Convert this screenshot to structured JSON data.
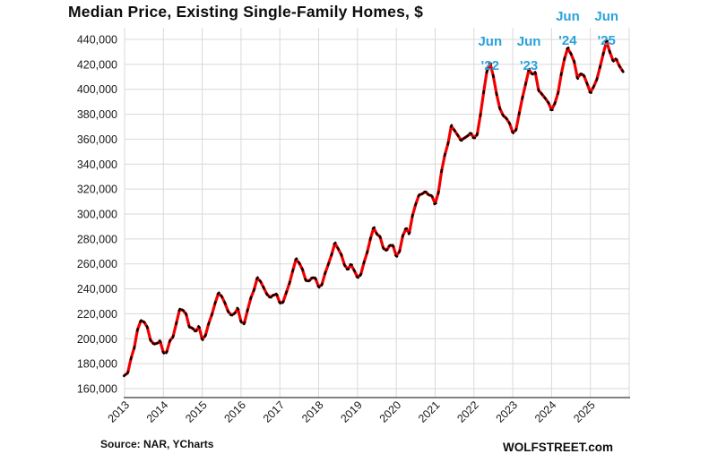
{
  "header": {
    "title": "Median Price, Existing Single-Family Homes, $"
  },
  "footer": {
    "source": "Source: NAR, YCharts",
    "branding": "WOLFSTREET.com"
  },
  "chart_data": {
    "type": "line",
    "title": "Median Price, Existing Single-Family Homes, $",
    "unit": "USD",
    "frequency": "monthly",
    "x_start": "2013-01",
    "x_end": "2025-11",
    "grid": true,
    "legend": "none",
    "x_tick_labels": [
      "2013",
      "2014",
      "2015",
      "2016",
      "2017",
      "2018",
      "2019",
      "2020",
      "2021",
      "2022",
      "2023",
      "2024",
      "2025"
    ],
    "y_tick_labels": [
      "160,000",
      "180,000",
      "200,000",
      "220,000",
      "240,000",
      "260,000",
      "280,000",
      "300,000",
      "320,000",
      "340,000",
      "360,000",
      "380,000",
      "400,000",
      "420,000",
      "440,000"
    ],
    "y_axis": {
      "min": 160000,
      "max": 440000,
      "step": 20000
    },
    "colors": {
      "line": "#f00000",
      "marker": "#000000",
      "annotation": "#29a2db",
      "gridline": "#d9d9d9",
      "axis_line": "#595959",
      "tick_text": "#1a1a1a"
    },
    "series": [
      {
        "name": "Median price, existing single-family homes",
        "color": "#f00000",
        "marker": "black-dash",
        "values": [
          170600,
          172800,
          184300,
          192800,
          207100,
          214200,
          213400,
          209300,
          198900,
          196000,
          196300,
          197900,
          188900,
          189200,
          198200,
          201700,
          212400,
          223300,
          222900,
          219800,
          209700,
          208300,
          206200,
          209500,
          199600,
          202600,
          212100,
          219400,
          228700,
          236400,
          234000,
          228700,
          221900,
          219000,
          220300,
          224100,
          213800,
          212300,
          222700,
          232500,
          239100,
          248600,
          246000,
          240900,
          235700,
          233300,
          234900,
          235500,
          228900,
          229400,
          237000,
          244800,
          254600,
          263800,
          260600,
          255500,
          247000,
          246400,
          248800,
          248400,
          241700,
          243400,
          252700,
          259900,
          267500,
          276500,
          272300,
          267300,
          259100,
          255800,
          259400,
          254700,
          249400,
          251400,
          261100,
          269300,
          280200,
          288800,
          284000,
          281600,
          272600,
          271100,
          274700,
          274500,
          266300,
          270100,
          282500,
          288200,
          284600,
          298600,
          307800,
          315000,
          316200,
          317700,
          315500,
          314300,
          308300,
          317100,
          334500,
          347400,
          356600,
          370600,
          367000,
          363200,
          359200,
          360800,
          362600,
          364600,
          361100,
          363800,
          379300,
          397600,
          414200,
          420900,
          410600,
          396300,
          384800,
          379100,
          376700,
          372700,
          365400,
          367500,
          380600,
          393300,
          404400,
          415700,
          412300,
          413200,
          399200,
          396100,
          392900,
          389300,
          383500,
          388700,
          397100,
          412100,
          424500,
          432900,
          428500,
          422100,
          409100,
          412200,
          410900,
          404400,
          397500,
          402000,
          408000,
          418000,
          428500,
          438500,
          430000,
          423000,
          424000,
          418500,
          414500
        ]
      }
    ],
    "annotations": [
      {
        "text_line1": "Jun",
        "text_line2": "'22",
        "month": "2022-06",
        "row": "low"
      },
      {
        "text_line1": "Jun",
        "text_line2": "'23",
        "month": "2023-06",
        "row": "low"
      },
      {
        "text_line1": "Jun",
        "text_line2": "'24",
        "month": "2024-06",
        "row": "high"
      },
      {
        "text_line1": "Jun",
        "text_line2": "'25",
        "month": "2025-06",
        "row": "high"
      }
    ]
  }
}
